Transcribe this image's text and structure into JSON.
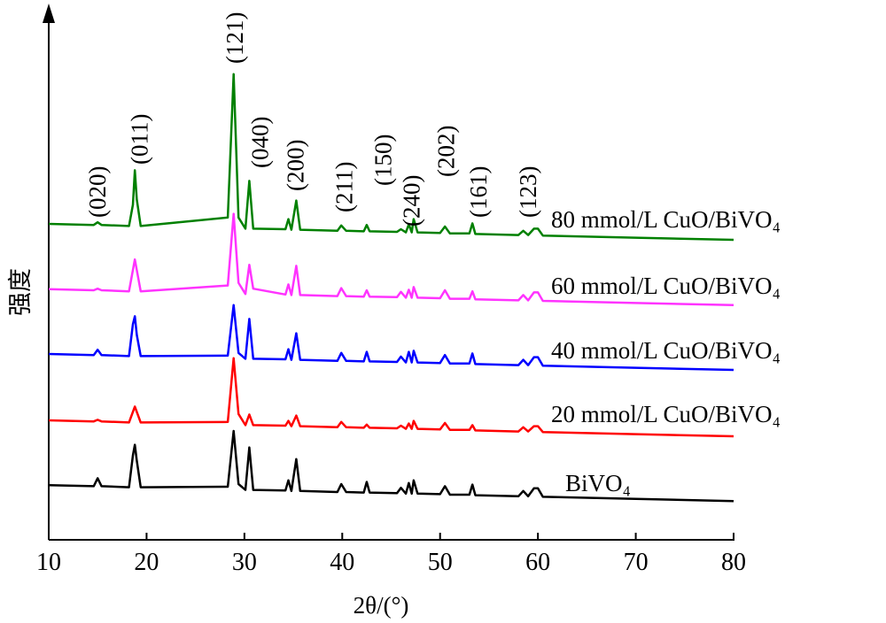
{
  "chart_data": {
    "type": "line",
    "xlabel": "2θ/(°)",
    "ylabel": "强度",
    "xlim": [
      10,
      80
    ],
    "xticks": [
      10,
      20,
      30,
      40,
      50,
      60,
      70,
      80
    ],
    "ylim": [
      0,
      100
    ],
    "x": [
      10,
      14.6,
      15,
      15.4,
      18.2,
      18.6,
      18.8,
      19.0,
      19.4,
      28.3,
      28.9,
      29.4,
      30.1,
      30.5,
      30.9,
      34.2,
      34.5,
      34.8,
      35.3,
      35.7,
      39.5,
      39.9,
      40.4,
      42.2,
      42.5,
      42.8,
      45.6,
      46.0,
      46.5,
      46.8,
      47.1,
      47.3,
      47.7,
      50.0,
      50.5,
      51.0,
      53.0,
      53.3,
      53.6,
      58.0,
      58.5,
      59.0,
      59.6,
      60.0,
      60.5,
      70,
      80
    ],
    "series": [
      {
        "name": "BiVO₄",
        "color": "#000000",
        "values": [
          10.3,
          10.1,
          11.6,
          10.1,
          9.9,
          15.9,
          17.9,
          14.9,
          9.9,
          10.0,
          20.5,
          10.5,
          9.4,
          17.4,
          9.4,
          9.3,
          11.2,
          9.2,
          15.2,
          9.2,
          9.0,
          10.5,
          9.0,
          8.9,
          10.9,
          8.9,
          8.8,
          9.8,
          8.7,
          10.7,
          8.7,
          11.2,
          8.7,
          8.6,
          10.1,
          8.5,
          8.5,
          10.4,
          8.4,
          8.2,
          9.2,
          8.2,
          9.7,
          9.7,
          8.1,
          7.7,
          7.3
        ]
      },
      {
        "name": "20 mmol/L CuO/BiVO₄",
        "color": "#ff0000",
        "values": [
          22.5,
          22.3,
          22.6,
          22.3,
          22.1,
          24.1,
          25.1,
          24.1,
          22.1,
          22.2,
          34.2,
          23.7,
          21.6,
          23.6,
          21.6,
          21.5,
          22.4,
          21.4,
          23.4,
          21.4,
          21.2,
          22.2,
          21.2,
          21.1,
          21.7,
          21.1,
          21.0,
          21.5,
          20.9,
          21.9,
          20.9,
          22.4,
          20.9,
          20.8,
          22.0,
          20.7,
          20.7,
          21.6,
          20.6,
          20.4,
          21.2,
          20.4,
          21.4,
          21.4,
          20.3,
          19.9,
          19.5
        ]
      },
      {
        "name": "40 mmol/L CuO/BiVO₄",
        "color": "#0000ff",
        "values": [
          35.0,
          34.8,
          35.8,
          34.8,
          34.6,
          40.6,
          42.1,
          38.6,
          34.6,
          34.7,
          44.2,
          35.2,
          34.1,
          41.6,
          34.1,
          34.0,
          35.9,
          33.9,
          38.9,
          33.9,
          33.7,
          35.2,
          33.7,
          33.6,
          35.4,
          33.6,
          33.5,
          34.5,
          33.4,
          35.4,
          33.4,
          35.6,
          33.4,
          33.3,
          34.8,
          33.2,
          33.2,
          35.1,
          33.1,
          32.9,
          33.9,
          32.9,
          34.4,
          34.4,
          32.8,
          32.4,
          32.0
        ]
      },
      {
        "name": "60 mmol/L CuO/BiVO₄",
        "color": "#ff33ff",
        "values": [
          47.2,
          47.0,
          47.3,
          47.0,
          46.8,
          50.8,
          52.8,
          50.8,
          46.8,
          47.9,
          61.4,
          48.4,
          46.3,
          51.8,
          47.3,
          46.2,
          48.1,
          46.1,
          51.6,
          46.1,
          45.9,
          47.4,
          45.9,
          45.8,
          47.0,
          45.8,
          45.7,
          46.7,
          45.6,
          47.1,
          45.6,
          47.6,
          45.6,
          45.5,
          47.0,
          45.4,
          45.4,
          46.8,
          45.3,
          45.1,
          46.1,
          45.1,
          46.6,
          46.6,
          45.0,
          44.6,
          44.2
        ]
      },
      {
        "name": "80 mmol/L CuO/BiVO₄",
        "color": "#008000",
        "values": [
          59.5,
          59.3,
          59.8,
          59.3,
          59.1,
          63.1,
          69.6,
          64.1,
          59.1,
          60.7,
          87.7,
          60.7,
          58.6,
          67.6,
          58.6,
          58.5,
          60.4,
          58.4,
          63.9,
          58.4,
          58.2,
          59.2,
          58.2,
          58.1,
          59.3,
          58.1,
          58.0,
          58.5,
          57.9,
          59.4,
          57.9,
          60.4,
          57.9,
          57.8,
          59.0,
          57.7,
          57.7,
          59.6,
          57.6,
          57.4,
          58.2,
          57.4,
          58.6,
          58.6,
          57.3,
          56.9,
          56.5
        ]
      }
    ],
    "annotations": [
      {
        "text": "(020)",
        "x": 15.0
      },
      {
        "text": "(011)",
        "x": 19.3
      },
      {
        "text": "(121)",
        "x": 29.0
      },
      {
        "text": "(040)",
        "x": 31.6
      },
      {
        "text": "(200)",
        "x": 35.2
      },
      {
        "text": "(211)",
        "x": 40.2
      },
      {
        "text": "(150)",
        "x": 44.2
      },
      {
        "text": "(240)",
        "x": 47.1
      },
      {
        "text": "(202)",
        "x": 50.6
      },
      {
        "text": "(161)",
        "x": 53.9
      },
      {
        "text": "(123)",
        "x": 59.0
      }
    ]
  }
}
